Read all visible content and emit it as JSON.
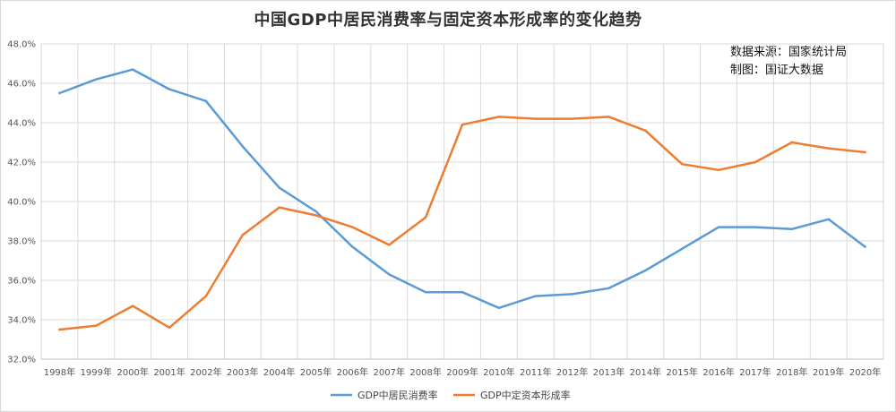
{
  "chart_data": {
    "type": "line",
    "title": "中国GDP中居民消费率与固定资本形成率的变化趋势",
    "source_line1": "数据来源：国家统计局",
    "source_line2": "制图：国证大数据",
    "categories": [
      "1998年",
      "1999年",
      "2000年",
      "2001年",
      "2002年",
      "2003年",
      "2004年",
      "2005年",
      "2006年",
      "2007年",
      "2008年",
      "2009年",
      "2010年",
      "2011年",
      "2012年",
      "2013年",
      "2014年",
      "2015年",
      "2016年",
      "2017年",
      "2018年",
      "2019年",
      "2020年"
    ],
    "ylim": [
      32,
      48
    ],
    "yticks": [
      32,
      34,
      36,
      38,
      40,
      42,
      44,
      46,
      48
    ],
    "ytick_labels": [
      "32.0%",
      "34.0%",
      "36.0%",
      "38.0%",
      "40.0%",
      "42.0%",
      "44.0%",
      "46.0%",
      "48.0%"
    ],
    "grid": true,
    "legend_position": "bottom",
    "series": [
      {
        "name": "GDP中居民消费率",
        "color": "#5b9bd5",
        "values": [
          45.5,
          46.2,
          46.7,
          45.7,
          45.1,
          42.8,
          40.7,
          39.5,
          37.7,
          36.3,
          35.4,
          35.4,
          34.6,
          35.2,
          35.3,
          35.6,
          36.5,
          37.6,
          38.7,
          38.7,
          38.6,
          39.1,
          37.7
        ]
      },
      {
        "name": "GDP中定资本形成率",
        "color": "#ed7d31",
        "values": [
          33.5,
          33.7,
          34.7,
          33.6,
          35.2,
          38.3,
          39.7,
          39.3,
          38.7,
          37.8,
          39.2,
          43.9,
          44.3,
          44.2,
          44.2,
          44.3,
          43.6,
          41.9,
          41.6,
          42.0,
          43.0,
          42.7,
          42.5
        ]
      }
    ]
  }
}
